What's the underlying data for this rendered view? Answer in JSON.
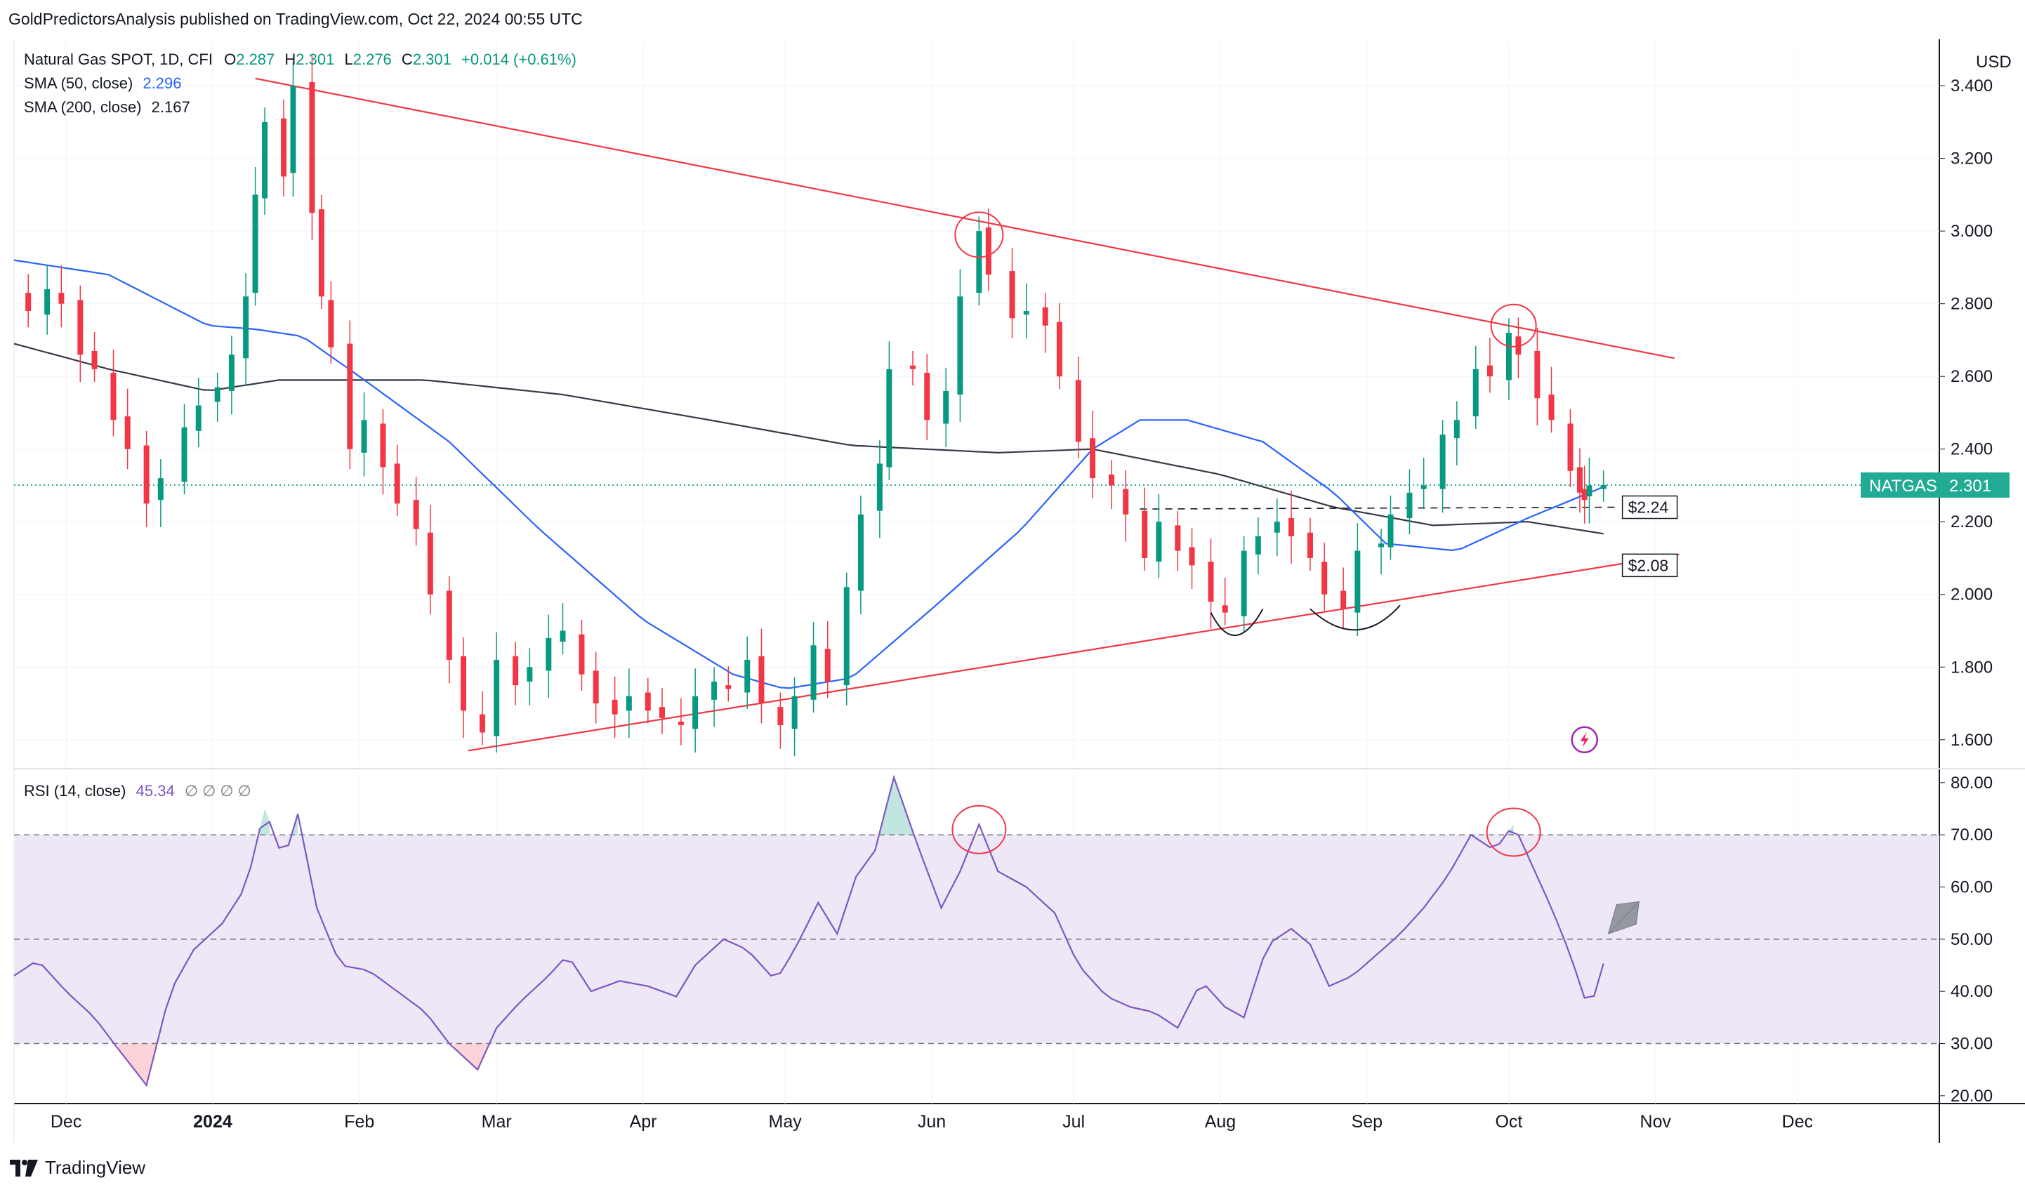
{
  "header": {
    "publisher_line": "GoldPredictorsAnalysis published on TradingView.com, Oct 22, 2024 00:55 UTC"
  },
  "legend": {
    "symbol_line": "Natural Gas SPOT, 1D, CFI",
    "ohlc": {
      "o_label": "O",
      "o": "2.287",
      "h_label": "H",
      "h": "2.301",
      "l_label": "L",
      "l": "2.276",
      "c_label": "C",
      "c": "2.301",
      "change": "+0.014 (+0.61%)"
    },
    "sma50": {
      "label": "SMA (50, close)",
      "value": "2.296"
    },
    "sma200": {
      "label": "SMA (200, close)",
      "value": "2.167"
    },
    "rsi": {
      "label": "RSI (14, close)",
      "value": "45.34",
      "extra": "∅ ∅ ∅ ∅"
    }
  },
  "axis": {
    "currency": "USD",
    "last_price_tag": {
      "symbol": "NATGAS",
      "value": "2.301"
    },
    "level_tags": [
      "$2.24",
      "$2.08"
    ]
  },
  "footer": {
    "brand": "TradingView"
  },
  "colors": {
    "up": "#089981",
    "down": "#f23645",
    "sma50": "#2962ff",
    "sma200": "#363a45",
    "trend": "#f23645",
    "rsi": "#7e57c2",
    "rsi_band": "#ede7f6",
    "grid": "#f0f3fa",
    "tag_green": "#22ab94"
  },
  "chart_data": [
    {
      "type": "candlestick",
      "title": "Natural Gas SPOT, 1D, CFI",
      "x_ticks": [
        "Dec",
        "2024",
        "Feb",
        "Mar",
        "Apr",
        "May",
        "Jun",
        "Jul",
        "Aug",
        "Sep",
        "Oct",
        "Nov",
        "Dec"
      ],
      "y_ticks": [
        "3.400",
        "3.200",
        "3.000",
        "2.800",
        "2.600",
        "2.400",
        "2.200",
        "2.000",
        "1.800",
        "1.600"
      ],
      "ylim": [
        1.53,
        3.52
      ],
      "x_range_dates": [
        "2023-11-20",
        "2024-12-31"
      ],
      "last": {
        "open": 2.287,
        "high": 2.301,
        "low": 2.276,
        "close": 2.301
      },
      "sma50": [
        [
          "2023-11-20",
          2.92
        ],
        [
          "2023-12-10",
          2.88
        ],
        [
          "2023-12-31",
          2.74
        ],
        [
          "2024-01-10",
          2.73
        ],
        [
          "2024-01-20",
          2.71
        ],
        [
          "2024-02-01",
          2.6
        ],
        [
          "2024-02-20",
          2.42
        ],
        [
          "2024-03-10",
          2.18
        ],
        [
          "2024-04-01",
          1.93
        ],
        [
          "2024-04-20",
          1.78
        ],
        [
          "2024-05-01",
          1.74
        ],
        [
          "2024-05-15",
          1.77
        ],
        [
          "2024-06-01",
          1.96
        ],
        [
          "2024-06-20",
          2.18
        ],
        [
          "2024-07-05",
          2.4
        ],
        [
          "2024-07-15",
          2.48
        ],
        [
          "2024-07-25",
          2.48
        ],
        [
          "2024-08-10",
          2.42
        ],
        [
          "2024-08-25",
          2.28
        ],
        [
          "2024-09-05",
          2.14
        ],
        [
          "2024-09-20",
          2.12
        ],
        [
          "2024-10-05",
          2.21
        ],
        [
          "2024-10-21",
          2.296
        ]
      ],
      "sma200": [
        [
          "2023-11-20",
          2.69
        ],
        [
          "2023-12-10",
          2.62
        ],
        [
          "2023-12-31",
          2.56
        ],
        [
          "2024-01-15",
          2.59
        ],
        [
          "2024-02-15",
          2.59
        ],
        [
          "2024-03-15",
          2.55
        ],
        [
          "2024-04-15",
          2.48
        ],
        [
          "2024-05-15",
          2.41
        ],
        [
          "2024-06-15",
          2.39
        ],
        [
          "2024-07-05",
          2.4
        ],
        [
          "2024-08-01",
          2.33
        ],
        [
          "2024-08-25",
          2.24
        ],
        [
          "2024-09-15",
          2.19
        ],
        [
          "2024-10-05",
          2.2
        ],
        [
          "2024-10-21",
          2.167
        ]
      ],
      "closes": [
        [
          "2023-11-20",
          2.82
        ],
        [
          "2023-11-23",
          2.78
        ],
        [
          "2023-11-27",
          2.84
        ],
        [
          "2023-11-30",
          2.8
        ],
        [
          "2023-12-04",
          2.66
        ],
        [
          "2023-12-07",
          2.62
        ],
        [
          "2023-12-11",
          2.48
        ],
        [
          "2023-12-14",
          2.4
        ],
        [
          "2023-12-18",
          2.25
        ],
        [
          "2023-12-21",
          2.32
        ],
        [
          "2023-12-26",
          2.46
        ],
        [
          "2023-12-29",
          2.52
        ],
        [
          "2024-01-02",
          2.57
        ],
        [
          "2024-01-05",
          2.66
        ],
        [
          "2024-01-08",
          2.82
        ],
        [
          "2024-01-10",
          3.1
        ],
        [
          "2024-01-12",
          3.3
        ],
        [
          "2024-01-16",
          3.15
        ],
        [
          "2024-01-18",
          3.4
        ],
        [
          "2024-01-22",
          3.05
        ],
        [
          "2024-01-24",
          2.82
        ],
        [
          "2024-01-26",
          2.68
        ],
        [
          "2024-01-30",
          2.4
        ],
        [
          "2024-02-02",
          2.48
        ],
        [
          "2024-02-06",
          2.35
        ],
        [
          "2024-02-09",
          2.25
        ],
        [
          "2024-02-13",
          2.18
        ],
        [
          "2024-02-16",
          2.0
        ],
        [
          "2024-02-20",
          1.82
        ],
        [
          "2024-02-23",
          1.68
        ],
        [
          "2024-02-27",
          1.62
        ],
        [
          "2024-03-01",
          1.82
        ],
        [
          "2024-03-05",
          1.75
        ],
        [
          "2024-03-08",
          1.8
        ],
        [
          "2024-03-12",
          1.88
        ],
        [
          "2024-03-15",
          1.9
        ],
        [
          "2024-03-19",
          1.78
        ],
        [
          "2024-03-22",
          1.7
        ],
        [
          "2024-03-26",
          1.67
        ],
        [
          "2024-03-29",
          1.72
        ],
        [
          "2024-04-02",
          1.68
        ],
        [
          "2024-04-05",
          1.66
        ],
        [
          "2024-04-09",
          1.64
        ],
        [
          "2024-04-12",
          1.72
        ],
        [
          "2024-04-16",
          1.76
        ],
        [
          "2024-04-19",
          1.74
        ],
        [
          "2024-04-23",
          1.82
        ],
        [
          "2024-04-26",
          1.7
        ],
        [
          "2024-04-30",
          1.64
        ],
        [
          "2024-05-03",
          1.72
        ],
        [
          "2024-05-07",
          1.86
        ],
        [
          "2024-05-10",
          1.76
        ],
        [
          "2024-05-14",
          2.02
        ],
        [
          "2024-05-17",
          2.22
        ],
        [
          "2024-05-21",
          2.36
        ],
        [
          "2024-05-23",
          2.62
        ],
        [
          "2024-05-28",
          2.62
        ],
        [
          "2024-05-31",
          2.48
        ],
        [
          "2024-06-04",
          2.56
        ],
        [
          "2024-06-07",
          2.82
        ],
        [
          "2024-06-11",
          3.0
        ],
        [
          "2024-06-13",
          2.88
        ],
        [
          "2024-06-18",
          2.76
        ],
        [
          "2024-06-21",
          2.78
        ],
        [
          "2024-06-25",
          2.74
        ],
        [
          "2024-06-28",
          2.6
        ],
        [
          "2024-07-02",
          2.42
        ],
        [
          "2024-07-05",
          2.32
        ],
        [
          "2024-07-09",
          2.3
        ],
        [
          "2024-07-12",
          2.22
        ],
        [
          "2024-07-16",
          2.1
        ],
        [
          "2024-07-19",
          2.2
        ],
        [
          "2024-07-23",
          2.12
        ],
        [
          "2024-07-26",
          2.08
        ],
        [
          "2024-07-30",
          1.98
        ],
        [
          "2024-08-02",
          1.95
        ],
        [
          "2024-08-06",
          2.12
        ],
        [
          "2024-08-09",
          2.16
        ],
        [
          "2024-08-13",
          2.2
        ],
        [
          "2024-08-16",
          2.16
        ],
        [
          "2024-08-20",
          2.1
        ],
        [
          "2024-08-23",
          2.0
        ],
        [
          "2024-08-27",
          1.96
        ],
        [
          "2024-08-30",
          2.12
        ],
        [
          "2024-09-04",
          2.14
        ],
        [
          "2024-09-06",
          2.22
        ],
        [
          "2024-09-10",
          2.28
        ],
        [
          "2024-09-13",
          2.3
        ],
        [
          "2024-09-17",
          2.44
        ],
        [
          "2024-09-20",
          2.48
        ],
        [
          "2024-09-24",
          2.62
        ],
        [
          "2024-09-27",
          2.6
        ],
        [
          "2024-10-01",
          2.72
        ],
        [
          "2024-10-03",
          2.66
        ],
        [
          "2024-10-07",
          2.54
        ],
        [
          "2024-10-10",
          2.48
        ],
        [
          "2024-10-14",
          2.34
        ],
        [
          "2024-10-16",
          2.28
        ],
        [
          "2024-10-17",
          2.26
        ],
        [
          "2024-10-18",
          2.3
        ],
        [
          "2024-10-21",
          2.301
        ]
      ]
    },
    {
      "type": "line",
      "title": "RSI (14, close)",
      "y_ticks": [
        "80.00",
        "70.00",
        "60.00",
        "50.00",
        "40.00",
        "30.00",
        "20.00"
      ],
      "ylim": [
        18.5,
        82
      ],
      "bands": {
        "upper": 70,
        "middle": 50,
        "lower": 30
      },
      "last_value": 45.34,
      "series": [
        [
          "2023-11-20",
          43
        ],
        [
          "2023-11-25",
          46
        ],
        [
          "2023-12-01",
          40
        ],
        [
          "2023-12-07",
          35
        ],
        [
          "2023-12-12",
          29
        ],
        [
          "2023-12-18",
          22
        ],
        [
          "2023-12-23",
          40
        ],
        [
          "2023-12-28",
          48
        ],
        [
          "2024-01-03",
          53
        ],
        [
          "2024-01-08",
          60
        ],
        [
          "2024-01-12",
          75
        ],
        [
          "2024-01-16",
          65
        ],
        [
          "2024-01-19",
          74
        ],
        [
          "2024-01-23",
          56
        ],
        [
          "2024-01-28",
          45
        ],
        [
          "2024-02-03",
          44
        ],
        [
          "2024-02-09",
          40
        ],
        [
          "2024-02-15",
          36
        ],
        [
          "2024-02-20",
          30
        ],
        [
          "2024-02-26",
          25
        ],
        [
          "2024-03-01",
          33
        ],
        [
          "2024-03-06",
          38
        ],
        [
          "2024-03-12",
          43
        ],
        [
          "2024-03-16",
          47
        ],
        [
          "2024-03-21",
          40
        ],
        [
          "2024-03-27",
          42
        ],
        [
          "2024-04-02",
          41
        ],
        [
          "2024-04-08",
          39
        ],
        [
          "2024-04-12",
          45
        ],
        [
          "2024-04-18",
          50
        ],
        [
          "2024-04-23",
          48
        ],
        [
          "2024-04-29",
          42
        ],
        [
          "2024-05-03",
          48
        ],
        [
          "2024-05-08",
          57
        ],
        [
          "2024-05-12",
          51
        ],
        [
          "2024-05-16",
          62
        ],
        [
          "2024-05-20",
          67
        ],
        [
          "2024-05-24",
          81
        ],
        [
          "2024-05-29",
          68
        ],
        [
          "2024-06-03",
          56
        ],
        [
          "2024-06-07",
          63
        ],
        [
          "2024-06-11",
          72
        ],
        [
          "2024-06-15",
          63
        ],
        [
          "2024-06-21",
          60
        ],
        [
          "2024-06-27",
          55
        ],
        [
          "2024-07-02",
          45
        ],
        [
          "2024-07-08",
          39
        ],
        [
          "2024-07-13",
          37
        ],
        [
          "2024-07-18",
          36
        ],
        [
          "2024-07-23",
          33
        ],
        [
          "2024-07-28",
          42
        ],
        [
          "2024-08-02",
          37
        ],
        [
          "2024-08-06",
          35
        ],
        [
          "2024-08-11",
          49
        ],
        [
          "2024-08-16",
          52
        ],
        [
          "2024-08-20",
          49
        ],
        [
          "2024-08-24",
          41
        ],
        [
          "2024-08-29",
          43
        ],
        [
          "2024-09-03",
          47
        ],
        [
          "2024-09-08",
          51
        ],
        [
          "2024-09-13",
          56
        ],
        [
          "2024-09-18",
          62
        ],
        [
          "2024-09-23",
          70
        ],
        [
          "2024-09-28",
          67
        ],
        [
          "2024-10-02",
          72
        ],
        [
          "2024-10-06",
          64
        ],
        [
          "2024-10-10",
          56
        ],
        [
          "2024-10-14",
          47
        ],
        [
          "2024-10-18",
          36
        ],
        [
          "2024-10-21",
          45.34
        ]
      ]
    }
  ]
}
